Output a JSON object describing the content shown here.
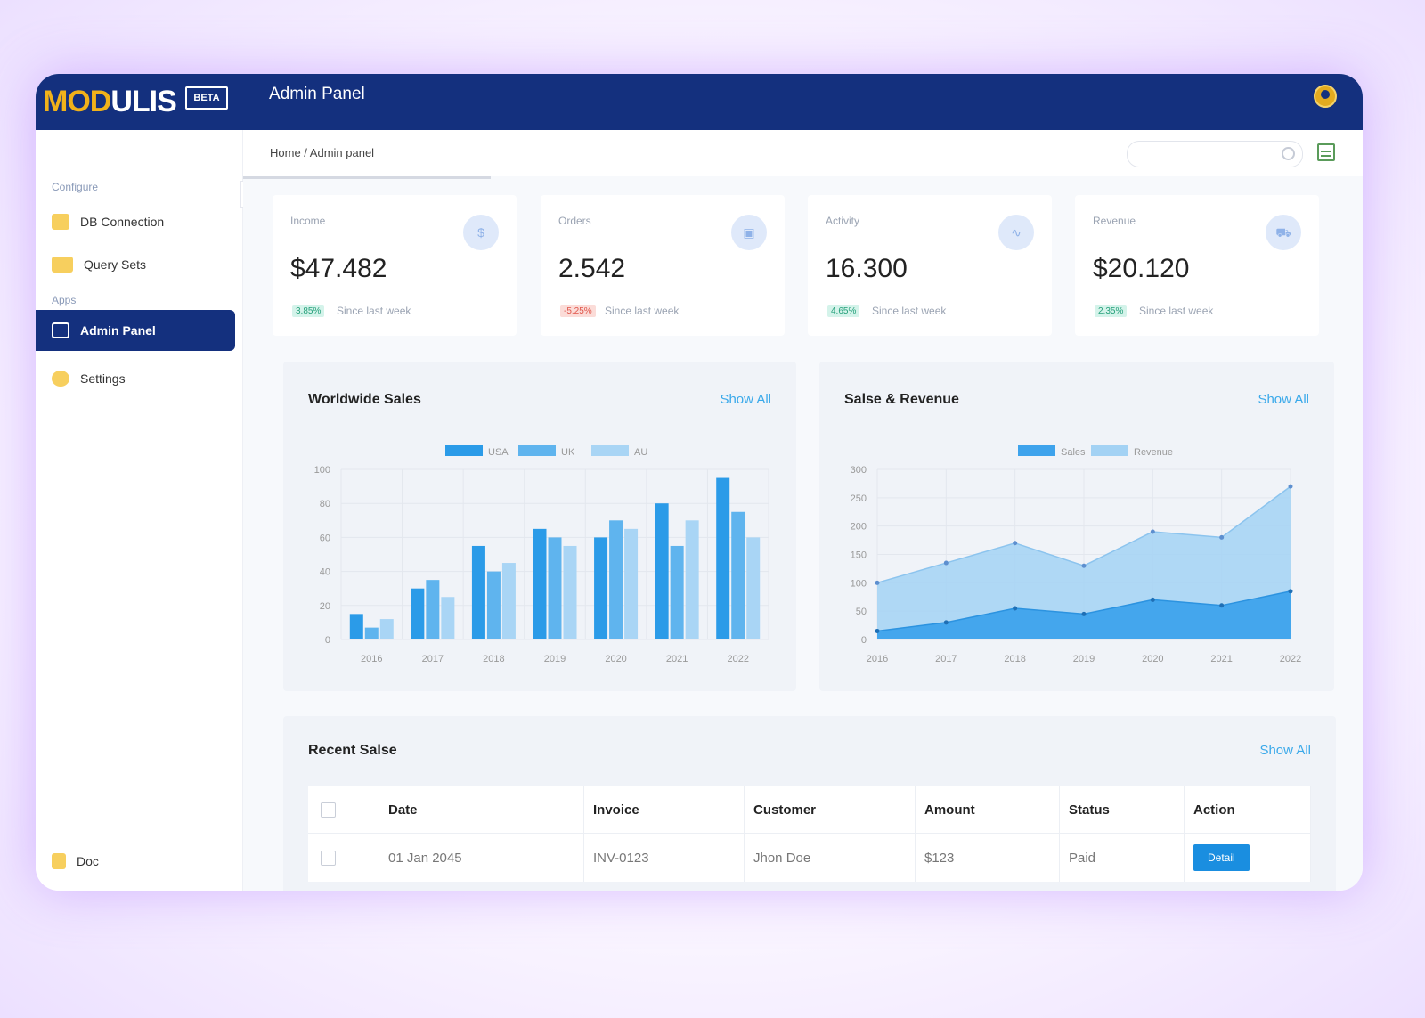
{
  "topbar": {
    "logo_mod": "MOD",
    "logo_ulis": "ULIS",
    "beta": "BETA",
    "title": "Admin Panel"
  },
  "sidebar": {
    "section_configure": "Configure",
    "section_apps": "Apps",
    "items": [
      {
        "label": "DB Connection",
        "icon": "database-icon",
        "color": "#f7cf5e"
      },
      {
        "label": "Query Sets",
        "icon": "folder-icon",
        "color": "#f7cf5e"
      },
      {
        "label": "Admin Panel",
        "icon": "panel-icon",
        "active": true
      },
      {
        "label": "Settings",
        "icon": "gear-icon",
        "color": "#f7cf5e"
      },
      {
        "label": "Doc",
        "icon": "document-icon",
        "color": "#f7cf5e"
      }
    ]
  },
  "breadcrumb": "Home / Admin panel",
  "search": {
    "placeholder": ""
  },
  "stats": [
    {
      "label": "Income",
      "value": "$47.482",
      "badge": "3.85%",
      "badge_type": "up",
      "since": "Since last week",
      "icon": "dollar-icon"
    },
    {
      "label": "Orders",
      "value": "2.542",
      "badge": "-5.25%",
      "badge_type": "down",
      "since": "Since last week",
      "icon": "bag-icon"
    },
    {
      "label": "Activity",
      "value": "16.300",
      "badge": "4.65%",
      "badge_type": "up",
      "since": "Since last week",
      "icon": "activity-icon"
    },
    {
      "label": "Revenue",
      "value": "$20.120",
      "badge": "2.35%",
      "badge_type": "up",
      "since": "Since last week",
      "icon": "cart-icon"
    }
  ],
  "colors": {
    "navy": "#14307e",
    "accent_blue": "#3aa9ea",
    "up_badge_bg": "#d4f3ea",
    "up_badge_fg": "#25a07a",
    "down_badge_bg": "#fbdcd8",
    "down_badge_fg": "#e0554a"
  },
  "worldwide_sales": {
    "title": "Worldwide Sales",
    "show_all": "Show All"
  },
  "sales_revenue": {
    "title": "Salse & Revenue",
    "show_all": "Show All"
  },
  "recent_sales": {
    "title": "Recent Salse",
    "show_all": "Show All",
    "columns": [
      "Date",
      "Invoice",
      "Customer",
      "Amount",
      "Status",
      "Action"
    ],
    "rows": [
      {
        "date": "01 Jan 2045",
        "invoice": "INV-0123",
        "customer": "Jhon Doe",
        "amount": "$123",
        "status": "Paid",
        "action": "Detail"
      }
    ]
  },
  "chart_data": [
    {
      "type": "bar",
      "title": "Worldwide Sales",
      "categories": [
        "2016",
        "2017",
        "2018",
        "2019",
        "2020",
        "2021",
        "2022"
      ],
      "series": [
        {
          "name": "USA",
          "color": "#2b9be8",
          "values": [
            15,
            30,
            55,
            65,
            60,
            80,
            95
          ]
        },
        {
          "name": "UK",
          "color": "#5fb4ee",
          "values": [
            7,
            35,
            40,
            60,
            70,
            55,
            75
          ]
        },
        {
          "name": "AU",
          "color": "#a9d5f5",
          "values": [
            12,
            25,
            45,
            55,
            65,
            70,
            60
          ]
        }
      ],
      "ylim": [
        0,
        100
      ],
      "yticks": [
        0,
        20,
        40,
        60,
        80,
        100
      ],
      "legend": "top-center",
      "grid": true
    },
    {
      "type": "area",
      "title": "Salse & Revenue",
      "categories": [
        "2016",
        "2017",
        "2018",
        "2019",
        "2020",
        "2021",
        "2022"
      ],
      "series": [
        {
          "name": "Sales",
          "color": "#3ea3ec",
          "values": [
            15,
            30,
            55,
            45,
            70,
            60,
            85
          ]
        },
        {
          "name": "Revenue",
          "color": "#a3d2f4",
          "values": [
            100,
            135,
            170,
            130,
            190,
            180,
            270
          ]
        }
      ],
      "ylim": [
        0,
        300
      ],
      "yticks": [
        0,
        50,
        100,
        150,
        200,
        250,
        300
      ],
      "legend": "top-center",
      "grid": true
    }
  ]
}
